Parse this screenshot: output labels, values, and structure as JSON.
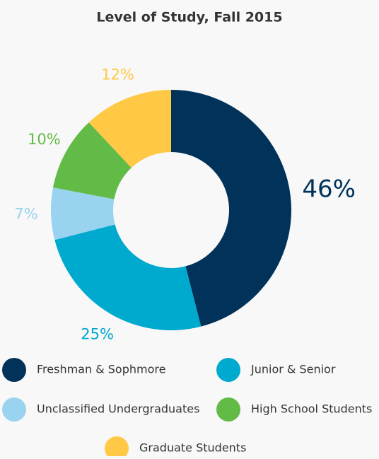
{
  "chart_data": {
    "type": "donut",
    "title": "Level of Study, Fall 2015",
    "categories": [
      "Freshman & Sophmore",
      "Junior & Senior",
      "Unclassified Undergraduates",
      "High School Students",
      "Graduate Students"
    ],
    "values": [
      46,
      25,
      7,
      10,
      12
    ],
    "value_labels": [
      "46%",
      "25%",
      "7%",
      "10%",
      "12%"
    ],
    "colors": [
      "#00325a",
      "#00a9ce",
      "#99d3f0",
      "#62bb46",
      "#ffc845"
    ]
  }
}
